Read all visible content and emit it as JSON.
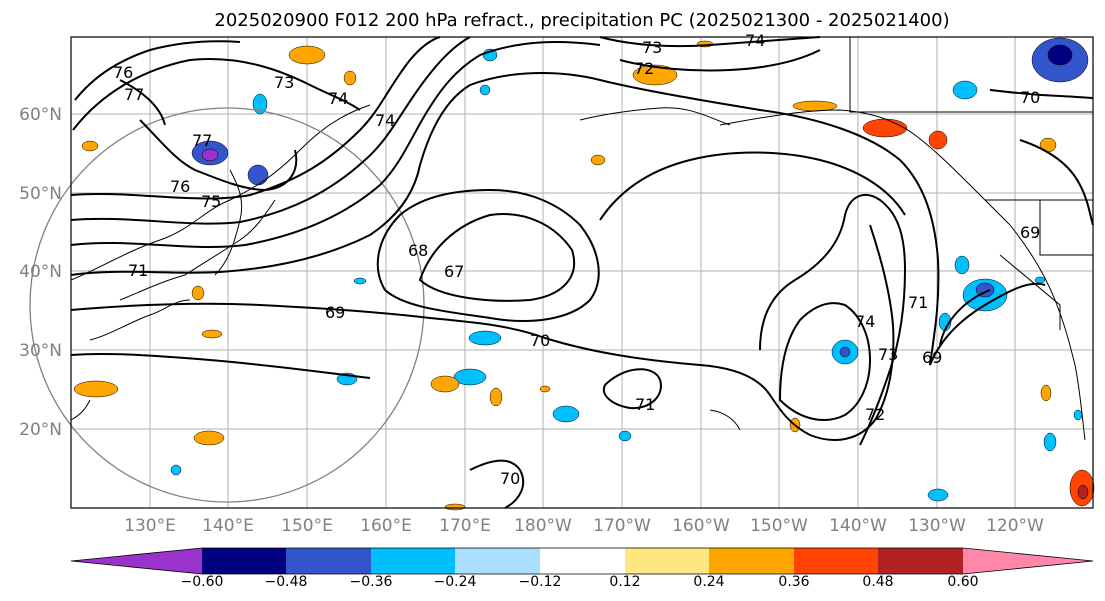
{
  "title": "2025020900 F012 200 hPa refract., precipitation PC (2025021300 - 2025021400)",
  "map": {
    "lat_labels": [
      "60°N",
      "50°N",
      "40°N",
      "30°N",
      "20°N"
    ],
    "lon_labels": [
      "130°E",
      "140°E",
      "150°E",
      "160°E",
      "170°E",
      "180°W",
      "170°W",
      "160°W",
      "150°W",
      "140°W",
      "130°W",
      "120°W"
    ],
    "contour_labels": [
      "76",
      "77",
      "73",
      "74",
      "74",
      "73",
      "72",
      "74",
      "70",
      "77",
      "76",
      "75",
      "71",
      "68",
      "67",
      "69",
      "70",
      "71",
      "70",
      "74",
      "73",
      "72",
      "71",
      "69",
      "69"
    ],
    "features": [
      "coastlines",
      "land boundaries",
      "gridlines",
      "reference circle"
    ]
  },
  "colorbar": {
    "ticks": [
      "−0.60",
      "−0.48",
      "−0.36",
      "−0.24",
      "−0.12",
      "0.12",
      "0.24",
      "0.36",
      "0.48",
      "0.60"
    ],
    "colors": [
      "#9933cc",
      "#000080",
      "#3355cc",
      "#00bfff",
      "#aadfff",
      "#ffffff",
      "#ffe680",
      "#ffa500",
      "#ff4500",
      "#b22222",
      "#ff88aa"
    ]
  }
}
